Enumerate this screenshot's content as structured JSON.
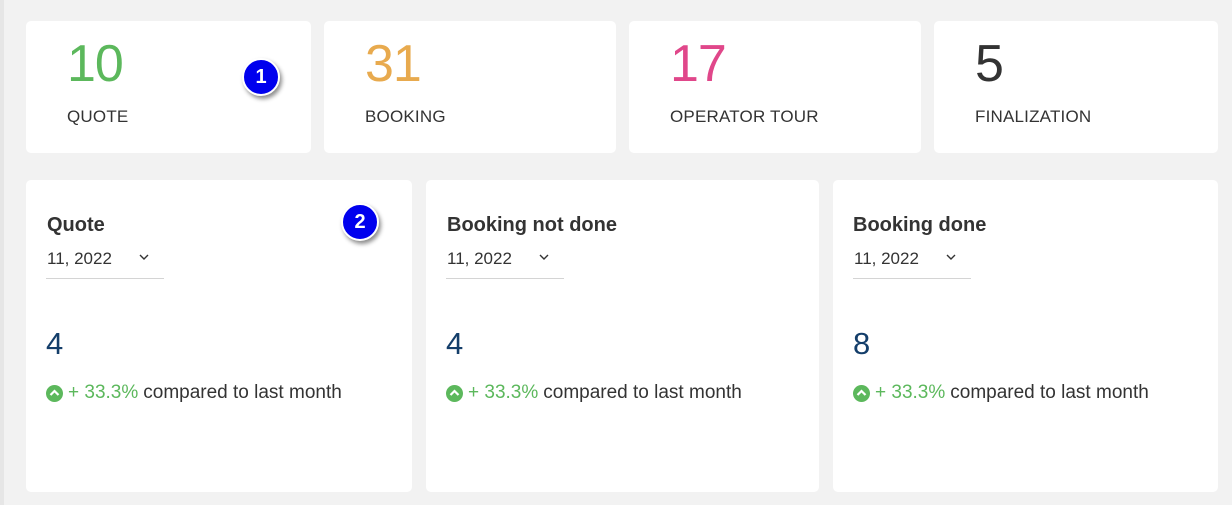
{
  "stats": [
    {
      "value": "10",
      "label": "QUOTE",
      "color": "#5cb85c"
    },
    {
      "value": "31",
      "label": "BOOKING",
      "color": "#e8aa4e"
    },
    {
      "value": "17",
      "label": "OPERATOR TOUR",
      "color": "#e0478a"
    },
    {
      "value": "5",
      "label": "FINALIZATION",
      "color": "#333333"
    }
  ],
  "metrics": [
    {
      "title": "Quote",
      "period": "11, 2022",
      "value": "4",
      "change": "+ 33.3%",
      "change_text": "compared to last month"
    },
    {
      "title": "Booking not done",
      "period": "11, 2022",
      "value": "4",
      "change": "+ 33.3%",
      "change_text": "compared to last month"
    },
    {
      "title": "Booking done",
      "period": "11, 2022",
      "value": "8",
      "change": "+ 33.3%",
      "change_text": "compared to last month"
    }
  ],
  "annotations": [
    "1",
    "2"
  ],
  "colors": {
    "up": "#5cb85c",
    "metric_value": "#143e6a",
    "badge": "#0000ee"
  }
}
